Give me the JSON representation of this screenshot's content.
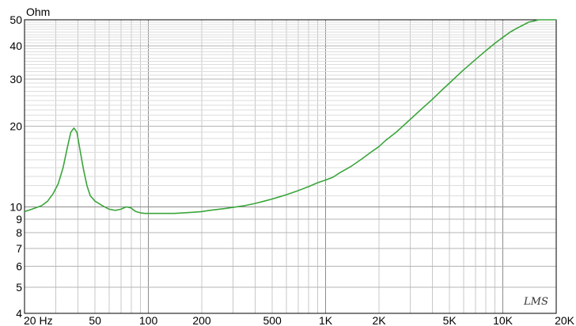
{
  "chart_data": {
    "type": "line",
    "title": "",
    "xlabel": "",
    "ylabel": "Ohm",
    "x_scale": "log",
    "y_scale": "log",
    "xlim": [
      20,
      20000
    ],
    "ylim": [
      4,
      50
    ],
    "grid": true,
    "watermark": "LMS",
    "x_tick_labels": [
      {
        "value": 20,
        "label": "20  Hz"
      },
      {
        "value": 50,
        "label": "50"
      },
      {
        "value": 100,
        "label": "100"
      },
      {
        "value": 200,
        "label": "200"
      },
      {
        "value": 500,
        "label": "500"
      },
      {
        "value": 1000,
        "label": "1K"
      },
      {
        "value": 2000,
        "label": "2K"
      },
      {
        "value": 5000,
        "label": "5K"
      },
      {
        "value": 10000,
        "label": "10K"
      },
      {
        "value": 20000,
        "label": "20K"
      }
    ],
    "y_tick_labels": [
      {
        "value": 4,
        "label": "4"
      },
      {
        "value": 5,
        "label": "5"
      },
      {
        "value": 6,
        "label": "6"
      },
      {
        "value": 7,
        "label": "7"
      },
      {
        "value": 8,
        "label": "8"
      },
      {
        "value": 9,
        "label": "9"
      },
      {
        "value": 10,
        "label": "10"
      },
      {
        "value": 20,
        "label": "20"
      },
      {
        "value": 30,
        "label": "30"
      },
      {
        "value": 40,
        "label": "40"
      },
      {
        "value": 50,
        "label": "50"
      }
    ],
    "line_color": "#3aa53a",
    "series": [
      {
        "x": [
          20,
          22,
          25,
          27,
          29,
          31,
          33,
          35,
          36.5,
          38,
          39.5,
          41,
          43,
          45,
          47,
          50,
          55,
          60,
          65,
          70,
          75,
          80,
          82,
          85,
          90,
          95,
          100,
          110,
          120,
          140,
          160,
          180,
          200,
          220,
          250,
          270,
          300,
          350,
          400,
          450,
          500,
          550,
          600,
          700,
          800,
          900,
          1000,
          1100,
          1200,
          1400,
          1600,
          1800,
          2000,
          2200,
          2500,
          3000,
          3500,
          4000,
          4500,
          5000,
          5500,
          6000,
          7000,
          8000,
          9000,
          10000,
          11000,
          12000,
          14000,
          16000,
          18000,
          20000
        ],
        "y": [
          9.6,
          9.8,
          10.1,
          10.5,
          11.2,
          12.2,
          14.0,
          16.8,
          19.0,
          19.7,
          19.0,
          16.5,
          13.8,
          12.0,
          11.0,
          10.5,
          10.1,
          9.8,
          9.7,
          9.8,
          10.0,
          9.9,
          9.75,
          9.6,
          9.5,
          9.45,
          9.45,
          9.45,
          9.45,
          9.45,
          9.5,
          9.55,
          9.6,
          9.7,
          9.8,
          9.85,
          9.95,
          10.1,
          10.3,
          10.5,
          10.7,
          10.9,
          11.1,
          11.5,
          11.9,
          12.3,
          12.6,
          12.9,
          13.4,
          14.2,
          15.1,
          16.0,
          16.8,
          17.8,
          19.0,
          21.2,
          23.3,
          25.2,
          27.2,
          29.0,
          30.8,
          32.5,
          35.5,
          38.3,
          40.8,
          43.0,
          45.0,
          46.5,
          49.0,
          51.0,
          52.5,
          53.5
        ]
      }
    ]
  }
}
